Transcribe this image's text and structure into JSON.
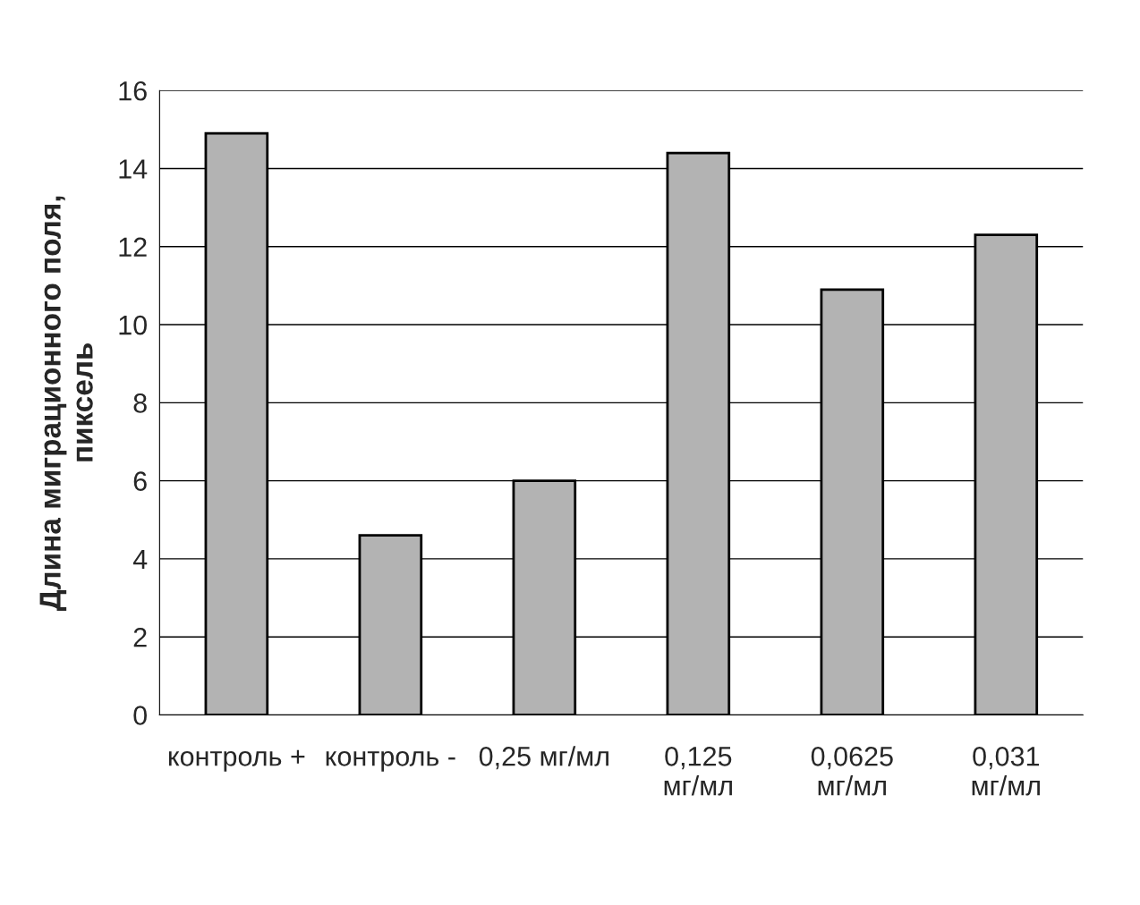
{
  "chart_data": {
    "type": "bar",
    "ylabel": "Длина миграционного поля,\nпиксель",
    "categories": [
      "контроль +",
      "контроль -",
      "0,25 мг/мл",
      "0,125\nмг/мл",
      "0,0625\nмг/мл",
      "0,031\nмг/мл"
    ],
    "values": [
      14.9,
      4.6,
      6.0,
      14.4,
      10.9,
      12.3
    ],
    "color": "#b3b3b3",
    "ylim": [
      0,
      16
    ],
    "yticks": [
      0,
      2,
      4,
      6,
      8,
      10,
      12,
      14,
      16
    ],
    "grid": "y"
  }
}
